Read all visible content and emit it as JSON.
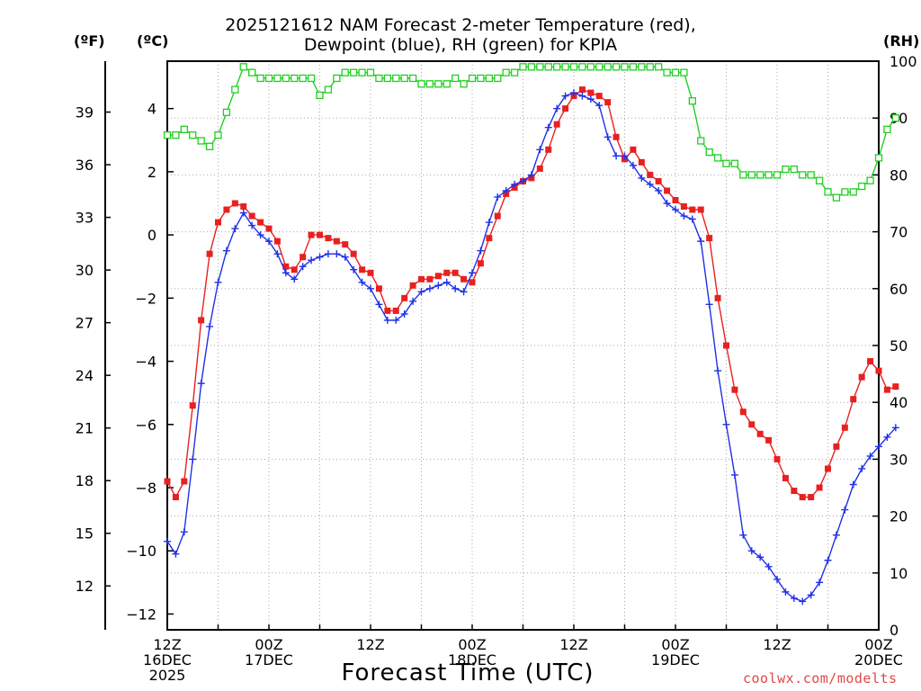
{
  "title_line1": "2025121612 NAM Forecast 2-meter Temperature (red),",
  "title_line2": "Dewpoint (blue), RH (green) for KPIA",
  "unit_f": "(ºF)",
  "unit_c": "(ºC)",
  "unit_rh": "(RH)",
  "x_title": "Forecast Time (UTC)",
  "credit": "coolwx.com/modelts",
  "chart_data": {
    "type": "line",
    "title": "2025121612 NAM Forecast 2-meter Temperature (red), Dewpoint (blue), RH (green) for KPIA",
    "xlabel": "Forecast Time (UTC)",
    "x_unit": "hours since 12Z 16DEC 2025",
    "xlim": [
      0,
      84
    ],
    "x_ticks": [
      {
        "x": 0,
        "lines": [
          "12Z",
          "16DEC",
          "2025"
        ]
      },
      {
        "x": 12,
        "lines": [
          "00Z",
          "17DEC"
        ]
      },
      {
        "x": 24,
        "lines": [
          "12Z"
        ]
      },
      {
        "x": 36,
        "lines": [
          "00Z",
          "18DEC"
        ]
      },
      {
        "x": 48,
        "lines": [
          "12Z"
        ]
      },
      {
        "x": 60,
        "lines": [
          "00Z",
          "19DEC"
        ]
      },
      {
        "x": 72,
        "lines": [
          "12Z"
        ]
      },
      {
        "x": 84,
        "lines": [
          "00Z",
          "20DEC"
        ]
      }
    ],
    "celsius_axis": {
      "label": "(ºC)",
      "ylim": [
        -12.5,
        5.5
      ],
      "ticks": [
        4,
        2,
        0,
        -2,
        -4,
        -6,
        -8,
        -10,
        -12
      ]
    },
    "fahrenheit_axis": {
      "label": "(ºF)",
      "ticks": [
        39,
        36,
        33,
        30,
        27,
        24,
        21,
        18,
        15,
        12
      ]
    },
    "rh_axis": {
      "label": "(RH)",
      "ylim": [
        0,
        100
      ],
      "ticks": [
        0,
        10,
        20,
        30,
        40,
        50,
        60,
        70,
        80,
        90,
        100
      ]
    },
    "grid": true,
    "series": [
      {
        "name": "Temperature",
        "axis": "celsius",
        "color": "#e82020",
        "marker": "filled-square",
        "values": [
          -7.8,
          -8.3,
          -7.8,
          -5.4,
          -2.7,
          -0.6,
          0.4,
          0.8,
          1.0,
          0.9,
          0.6,
          0.4,
          0.2,
          -0.2,
          -1.0,
          -1.1,
          -0.7,
          0.0,
          0.0,
          -0.1,
          -0.2,
          -0.3,
          -0.6,
          -1.1,
          -1.2,
          -1.7,
          -2.4,
          -2.4,
          -2.0,
          -1.6,
          -1.4,
          -1.4,
          -1.3,
          -1.2,
          -1.2,
          -1.4,
          -1.5,
          -0.9,
          -0.1,
          0.6,
          1.3,
          1.5,
          1.7,
          1.8,
          2.1,
          2.7,
          3.5,
          4.0,
          4.4,
          4.6,
          4.5,
          4.4,
          4.2,
          3.1,
          2.4,
          2.7,
          2.3,
          1.9,
          1.7,
          1.4,
          1.1,
          0.9,
          0.8,
          0.8,
          -0.1,
          -2.0,
          -3.5,
          -4.9,
          -5.6,
          -6.0,
          -6.3,
          -6.5,
          -7.1,
          -7.7,
          -8.1,
          -8.3,
          -8.3,
          -8.0,
          -7.4,
          -6.7,
          -6.1,
          -5.2,
          -4.5,
          -4.0,
          -4.3,
          -4.9,
          -4.8
        ]
      },
      {
        "name": "Dewpoint",
        "axis": "celsius",
        "color": "#2030e8",
        "marker": "plus",
        "values": [
          -9.7,
          -10.1,
          -9.4,
          -7.1,
          -4.7,
          -2.9,
          -1.5,
          -0.5,
          0.2,
          0.7,
          0.3,
          0.0,
          -0.2,
          -0.6,
          -1.2,
          -1.4,
          -1.0,
          -0.8,
          -0.7,
          -0.6,
          -0.6,
          -0.7,
          -1.1,
          -1.5,
          -1.7,
          -2.2,
          -2.7,
          -2.7,
          -2.5,
          -2.1,
          -1.8,
          -1.7,
          -1.6,
          -1.5,
          -1.7,
          -1.8,
          -1.2,
          -0.5,
          0.4,
          1.2,
          1.4,
          1.6,
          1.7,
          1.9,
          2.7,
          3.4,
          4.0,
          4.4,
          4.5,
          4.4,
          4.3,
          4.1,
          3.1,
          2.5,
          2.5,
          2.2,
          1.8,
          1.6,
          1.4,
          1.0,
          0.8,
          0.6,
          0.5,
          -0.2,
          -2.2,
          -4.3,
          -6.0,
          -7.6,
          -9.5,
          -10.0,
          -10.2,
          -10.5,
          -10.9,
          -11.3,
          -11.5,
          -11.6,
          -11.4,
          -11.0,
          -10.3,
          -9.5,
          -8.7,
          -7.9,
          -7.4,
          -7.0,
          -6.7,
          -6.4,
          -6.1
        ]
      },
      {
        "name": "RH",
        "axis": "rh",
        "color": "#20d020",
        "marker": "open-square",
        "values": [
          87,
          87,
          88,
          87,
          86,
          85,
          87,
          91,
          95,
          99,
          98,
          97,
          97,
          97,
          97,
          97,
          97,
          97,
          94,
          95,
          97,
          98,
          98,
          98,
          98,
          97,
          97,
          97,
          97,
          97,
          96,
          96,
          96,
          96,
          97,
          96,
          97,
          97,
          97,
          97,
          98,
          98,
          99,
          99,
          99,
          99,
          99,
          99,
          99,
          99,
          99,
          99,
          99,
          99,
          99,
          99,
          99,
          99,
          99,
          98,
          98,
          98,
          93,
          86,
          84,
          83,
          82,
          82,
          80,
          80,
          80,
          80,
          80,
          81,
          81,
          80,
          80,
          79,
          77,
          76,
          77,
          77,
          78,
          79,
          83,
          88,
          90
        ]
      }
    ]
  }
}
